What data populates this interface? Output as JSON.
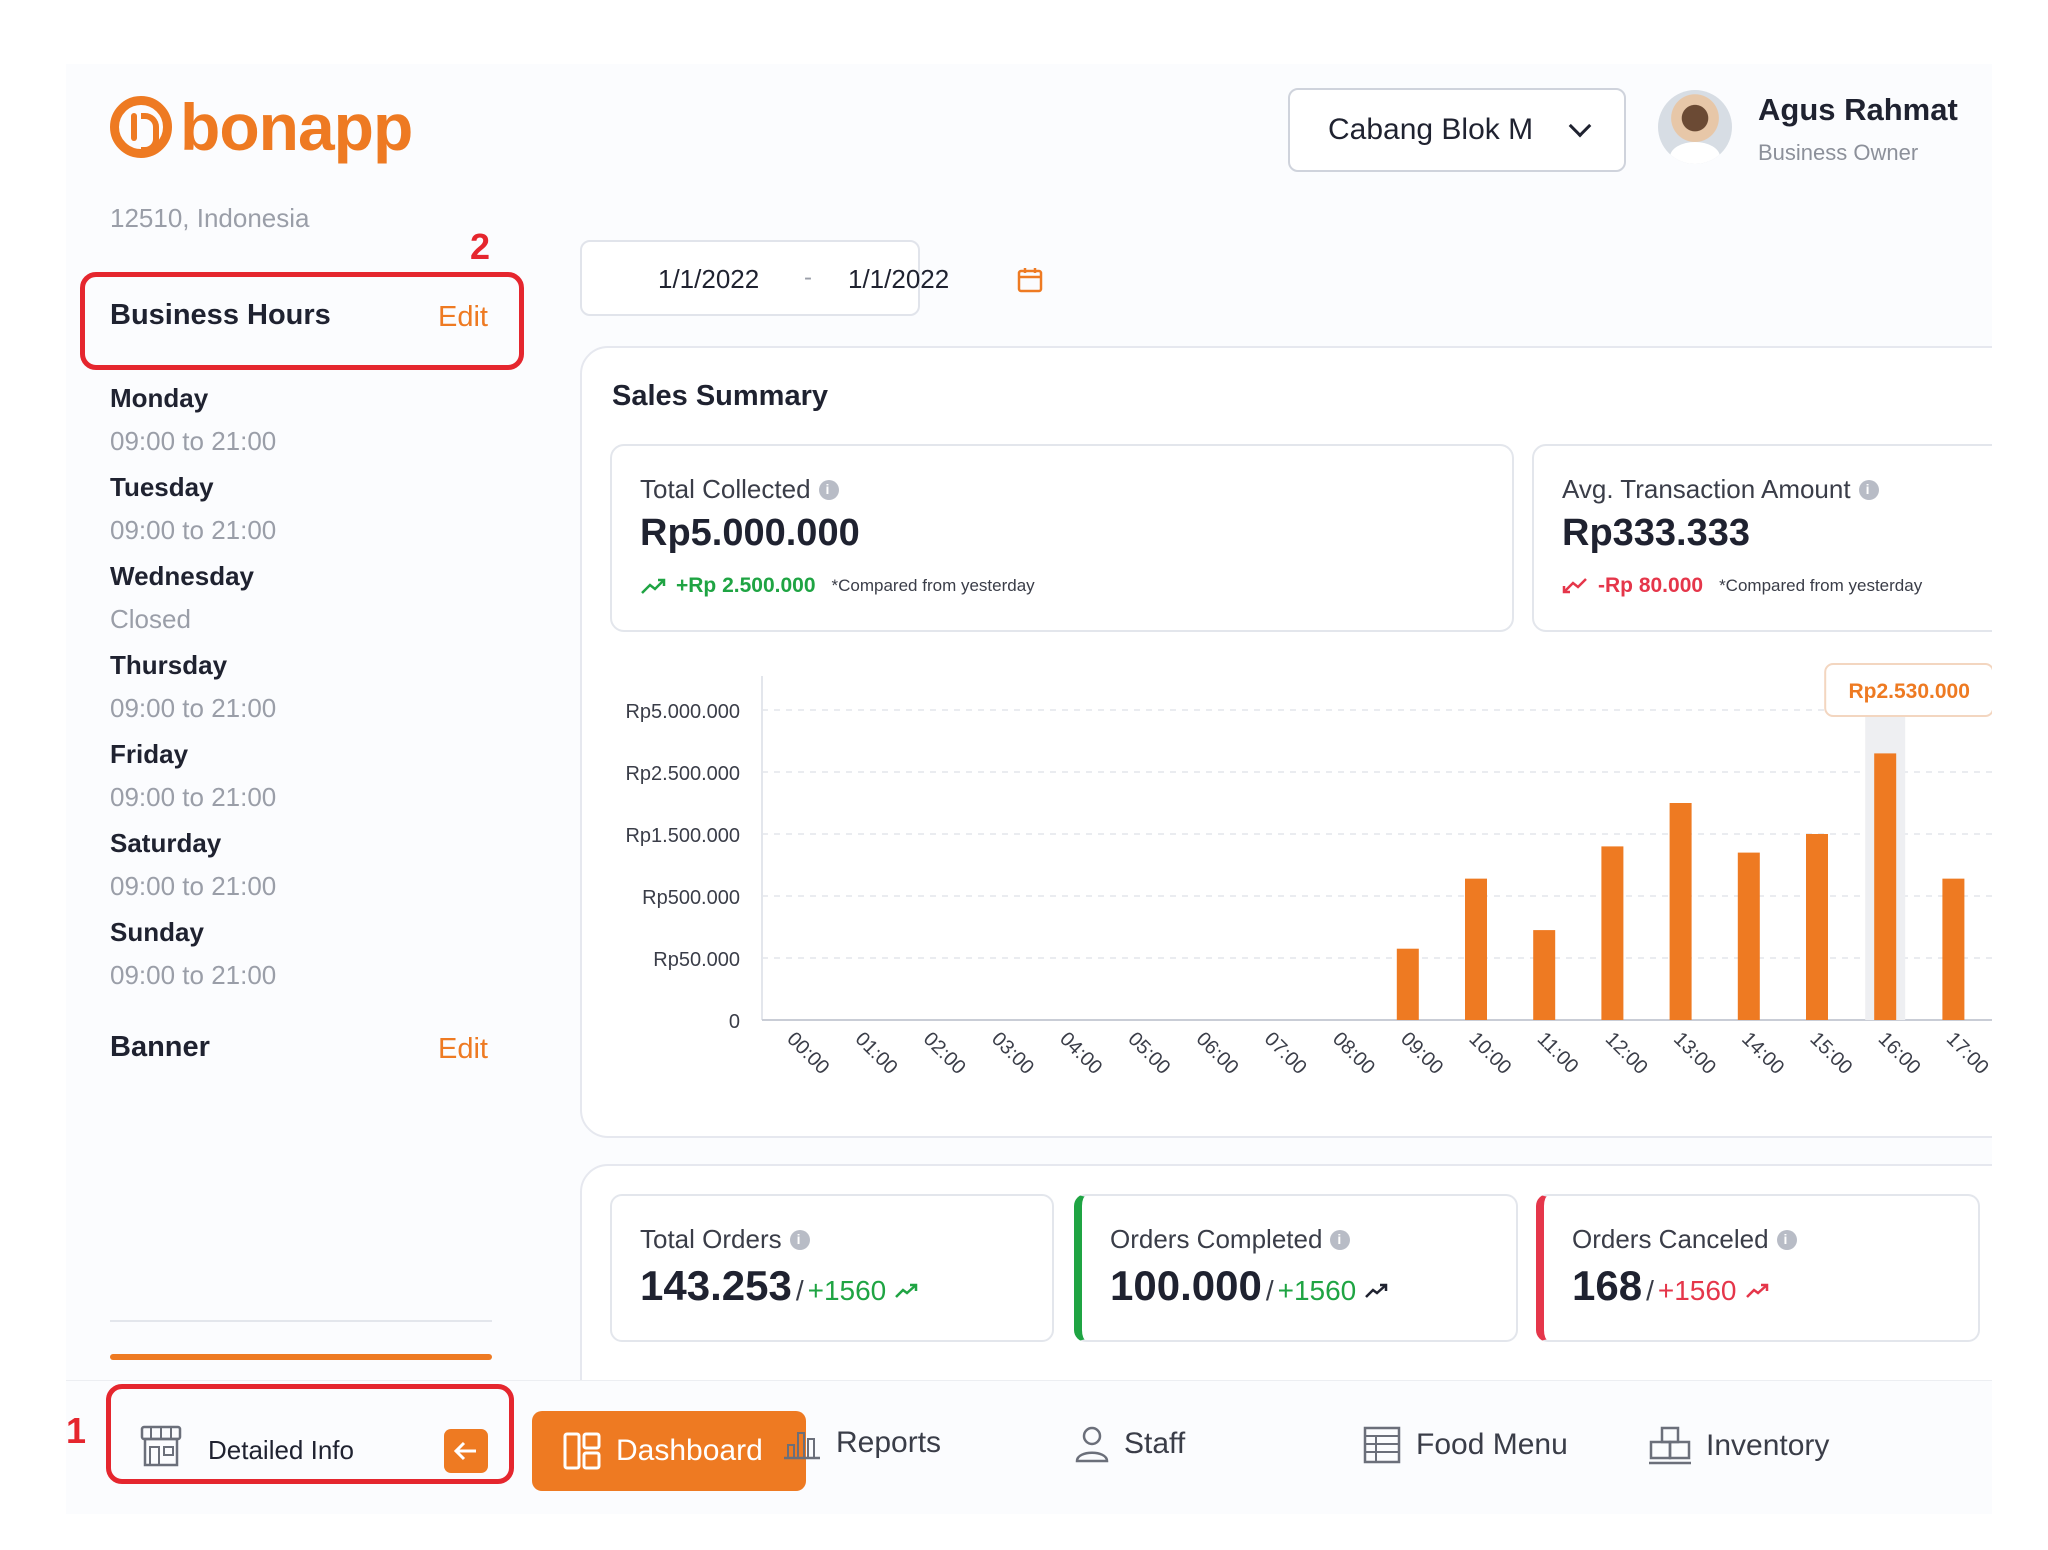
{
  "app": {
    "logo_text": "bonapp",
    "brand_color": "#ee7a22"
  },
  "header": {
    "branch": "Cabang Blok M",
    "user_name": "Agus Rahmat",
    "user_role": "Business Owner"
  },
  "sidebar": {
    "address_tail": "12510, Indonesia",
    "business_hours_title": "Business Hours",
    "edit_label": "Edit",
    "days": [
      {
        "name": "Monday",
        "hours": "09:00 to 21:00"
      },
      {
        "name": "Tuesday",
        "hours": "09:00 to 21:00"
      },
      {
        "name": "Wednesday",
        "hours": "Closed"
      },
      {
        "name": "Thursday",
        "hours": "09:00 to 21:00"
      },
      {
        "name": "Friday",
        "hours": "09:00 to 21:00"
      },
      {
        "name": "Saturday",
        "hours": "09:00 to 21:00"
      },
      {
        "name": "Sunday",
        "hours": "09:00 to 21:00"
      }
    ],
    "banner_title": "Banner",
    "banner_edit": "Edit"
  },
  "date_range": {
    "from": "1/1/2022",
    "separator": "-",
    "to": "1/1/2022"
  },
  "sales_summary": {
    "title": "Sales Summary",
    "kpis": [
      {
        "label": "Total Collected",
        "value": "Rp5.000.000",
        "delta": "+Rp 2.500.000",
        "trend": "up",
        "note": "*Compared from yesterday"
      },
      {
        "label": "Avg. Transaction Amount",
        "value": "Rp333.333",
        "delta": "-Rp 80.000",
        "trend": "down",
        "note": "*Compared from yesterday"
      }
    ]
  },
  "chart_data": {
    "type": "bar",
    "categories": [
      "00:00",
      "01:00",
      "02:00",
      "03:00",
      "04:00",
      "05:00",
      "06:00",
      "07:00",
      "08:00",
      "09:00",
      "10:00",
      "11:00",
      "12:00",
      "13:00",
      "14:00",
      "15:00",
      "16:00",
      "17:00"
    ],
    "y_ticks": [
      "0",
      "Rp50.000",
      "Rp500.000",
      "Rp1.500.000",
      "Rp2.500.000",
      "Rp5.000.000"
    ],
    "bar_levels": [
      0,
      0,
      0,
      0,
      0,
      0,
      0,
      0,
      0,
      1.15,
      2.28,
      1.45,
      2.8,
      3.5,
      2.7,
      3.0,
      4.3,
      2.28
    ],
    "highlight_index": 16,
    "tooltip": "Rp2.530.000",
    "bar_color": "#ee7a22",
    "grid": true
  },
  "orders": [
    {
      "label": "Total Orders",
      "value": "143.253",
      "delta": "+1560",
      "color": "#1fa443",
      "accent": ""
    },
    {
      "label": "Orders Completed",
      "value": "100.000",
      "delta": "+1560",
      "color": "#1fa443",
      "accent": "#1fa443"
    },
    {
      "label": "Orders Canceled",
      "value": "168",
      "delta": "+1560",
      "color": "#e5364a",
      "accent": "#e5364a"
    }
  ],
  "bottom_nav": {
    "detailed_info": "Detailed Info",
    "items": [
      "Dashboard",
      "Reports",
      "Staff",
      "Food Menu",
      "Inventory"
    ]
  },
  "annotations": {
    "one": "1",
    "two": "2",
    "color": "#e5262e"
  }
}
